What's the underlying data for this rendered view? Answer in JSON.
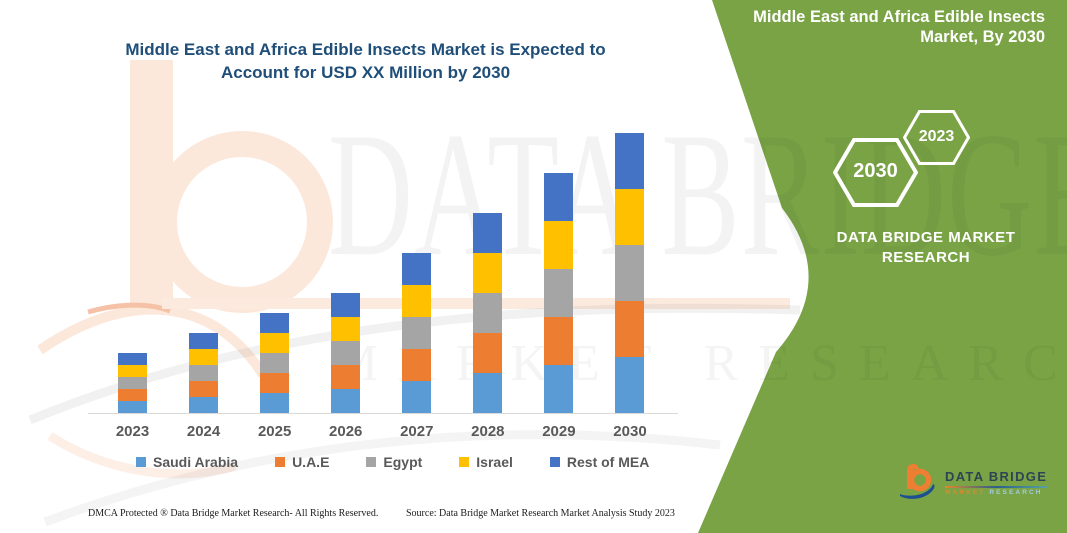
{
  "header": {
    "title_line1": "Middle East and Africa Edible Insects Market is Expected to",
    "title_line2": "Account for USD XX Million by 2030",
    "title_color": "#1F4E79"
  },
  "chart_data": {
    "type": "bar",
    "stacked": true,
    "title": "Middle East and Africa Edible Insects Market is Expected to Account for USD XX Million by 2030",
    "categories": [
      "2023",
      "2024",
      "2025",
      "2026",
      "2027",
      "2028",
      "2029",
      "2030"
    ],
    "series": [
      {
        "name": "Saudi Arabia",
        "color": "#5B9BD5",
        "values": [
          3,
          4,
          5,
          6,
          8,
          10,
          12,
          14
        ]
      },
      {
        "name": "U.A.E",
        "color": "#ED7D31",
        "values": [
          3,
          4,
          5,
          6,
          8,
          10,
          12,
          14
        ]
      },
      {
        "name": "Egypt",
        "color": "#A5A5A5",
        "values": [
          3,
          4,
          5,
          6,
          8,
          10,
          12,
          14
        ]
      },
      {
        "name": "Israel",
        "color": "#FFC000",
        "values": [
          3,
          4,
          5,
          6,
          8,
          10,
          12,
          14
        ]
      },
      {
        "name": "Rest of MEA",
        "color": "#4472C4",
        "values": [
          3,
          4,
          5,
          6,
          8,
          10,
          12,
          14
        ]
      }
    ],
    "xlabel": "",
    "ylabel": "",
    "ylim": [
      0,
      75
    ],
    "y_axis_shown": false,
    "grid": false,
    "legend_position": "bottom",
    "values_estimated_relative_units": true
  },
  "side_panel": {
    "bg_color": "#79A344",
    "title_line1": "Middle East and Africa Edible Insects",
    "title_line2": "Market, By 2030",
    "hex_small_label": "2023",
    "hex_large_label": "2030",
    "brand_line1": "DATA BRIDGE MARKET",
    "brand_line2": "RESEARCH"
  },
  "watermark": {
    "line1": "DATA BRIDGE",
    "line2": "MARKET RESEARCH"
  },
  "logo": {
    "title": "DATA BRIDGE",
    "subtitle_word1": "MARKET",
    "subtitle_word2": "RESEARCH"
  },
  "footer": {
    "left": "DMCA Protected ® Data Bridge Market Research-  All Rights Reserved.",
    "right": "Source: Data Bridge Market Research  Market Analysis Study 2023"
  }
}
